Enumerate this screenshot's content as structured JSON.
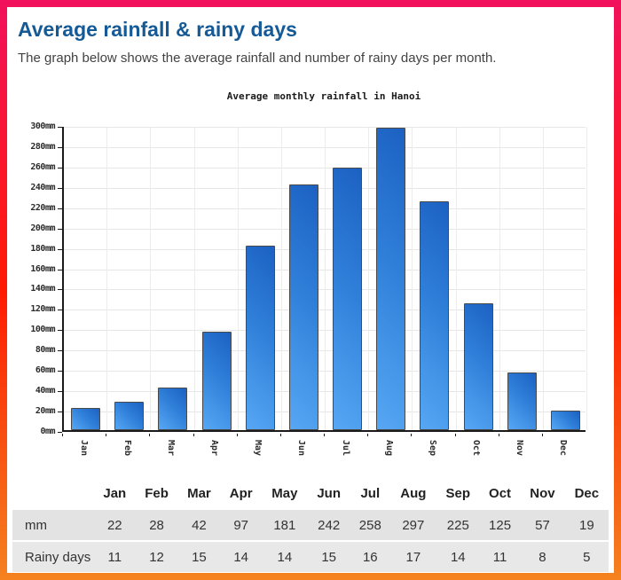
{
  "page": {
    "title": "Average rainfall & rainy days",
    "subtitle": "The graph below shows the average rainfall and number of rainy days per month."
  },
  "chart_data": {
    "type": "bar",
    "title": "Average monthly rainfall in Hanoi",
    "categories": [
      "Jan",
      "Feb",
      "Mar",
      "Apr",
      "May",
      "Jun",
      "Jul",
      "Aug",
      "Sep",
      "Oct",
      "Nov",
      "Dec"
    ],
    "values": [
      22,
      28,
      42,
      97,
      181,
      242,
      258,
      297,
      225,
      125,
      57,
      19
    ],
    "ylabel": "",
    "xlabel": "",
    "ytick_suffix": "mm",
    "ylim": [
      0,
      300
    ],
    "ytick_step": 20,
    "grid": true,
    "legend": "none",
    "bar_color_light": "#57a7f5",
    "bar_color_dark": "#1c61c2"
  },
  "table": {
    "header": [
      "",
      "Jan",
      "Feb",
      "Mar",
      "Apr",
      "May",
      "Jun",
      "Jul",
      "Aug",
      "Sep",
      "Oct",
      "Nov",
      "Dec"
    ],
    "rows": [
      {
        "label": "mm",
        "values": [
          "22",
          "28",
          "42",
          "97",
          "181",
          "242",
          "258",
          "297",
          "225",
          "125",
          "57",
          "19"
        ]
      },
      {
        "label": "Rainy days",
        "values": [
          "11",
          "12",
          "15",
          "14",
          "14",
          "15",
          "16",
          "17",
          "14",
          "11",
          "8",
          "5"
        ]
      }
    ]
  },
  "colors": {
    "accent_border_top": "#f1115c",
    "accent_border_middle": "#ff1a02",
    "accent_border_bottom": "#f5821f",
    "title_blue": "#155a96"
  }
}
